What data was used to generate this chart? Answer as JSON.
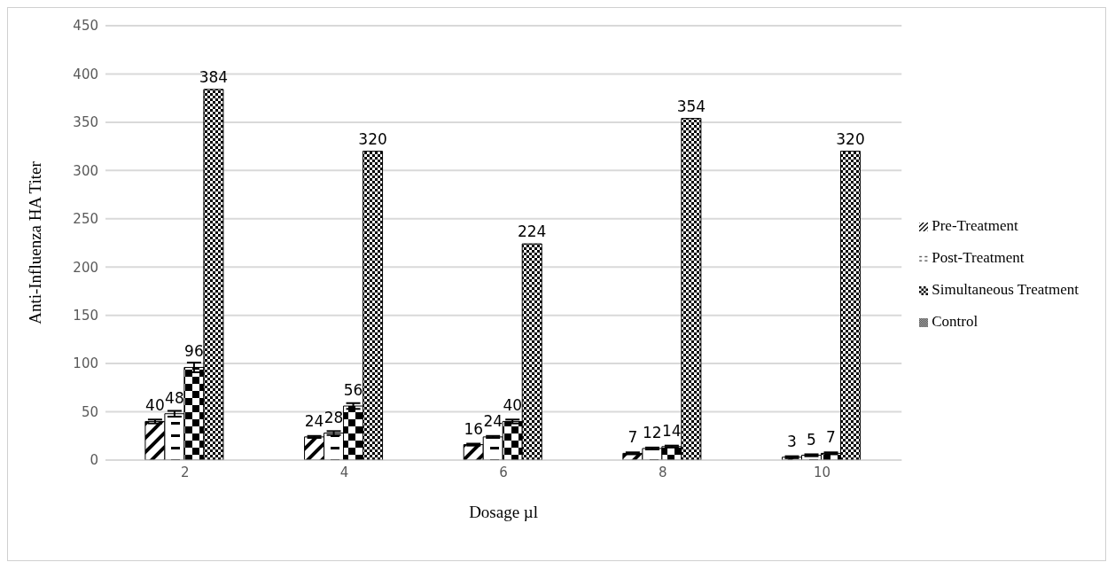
{
  "chart_data": {
    "type": "bar",
    "xlabel": "Dosage µl",
    "ylabel": "Anti-Influenza HA Titer",
    "categories": [
      "2",
      "4",
      "6",
      "8",
      "10"
    ],
    "series": [
      {
        "name": "Pre-Treatment",
        "color": "#000000",
        "values": [
          40,
          24,
          16,
          7,
          3
        ],
        "errors": [
          2,
          1,
          1,
          1,
          1
        ]
      },
      {
        "name": "Post-Treatment",
        "color": "#000000",
        "values": [
          48,
          28,
          24,
          12,
          5
        ],
        "errors": [
          3,
          2,
          1,
          1,
          1
        ]
      },
      {
        "name": "Simultaneous Treatment",
        "color": "#000000",
        "values": [
          96,
          56,
          40,
          14,
          7
        ],
        "errors": [
          5,
          3,
          2,
          1,
          1
        ]
      },
      {
        "name": "Control",
        "color": "#000000",
        "values": [
          384,
          320,
          224,
          354,
          320
        ]
      }
    ],
    "ylim": [
      0,
      450
    ],
    "yticks": [
      0,
      50,
      100,
      150,
      200,
      250,
      300,
      350,
      400,
      450
    ],
    "grid": "y",
    "legend": "right",
    "data_labels": true
  }
}
